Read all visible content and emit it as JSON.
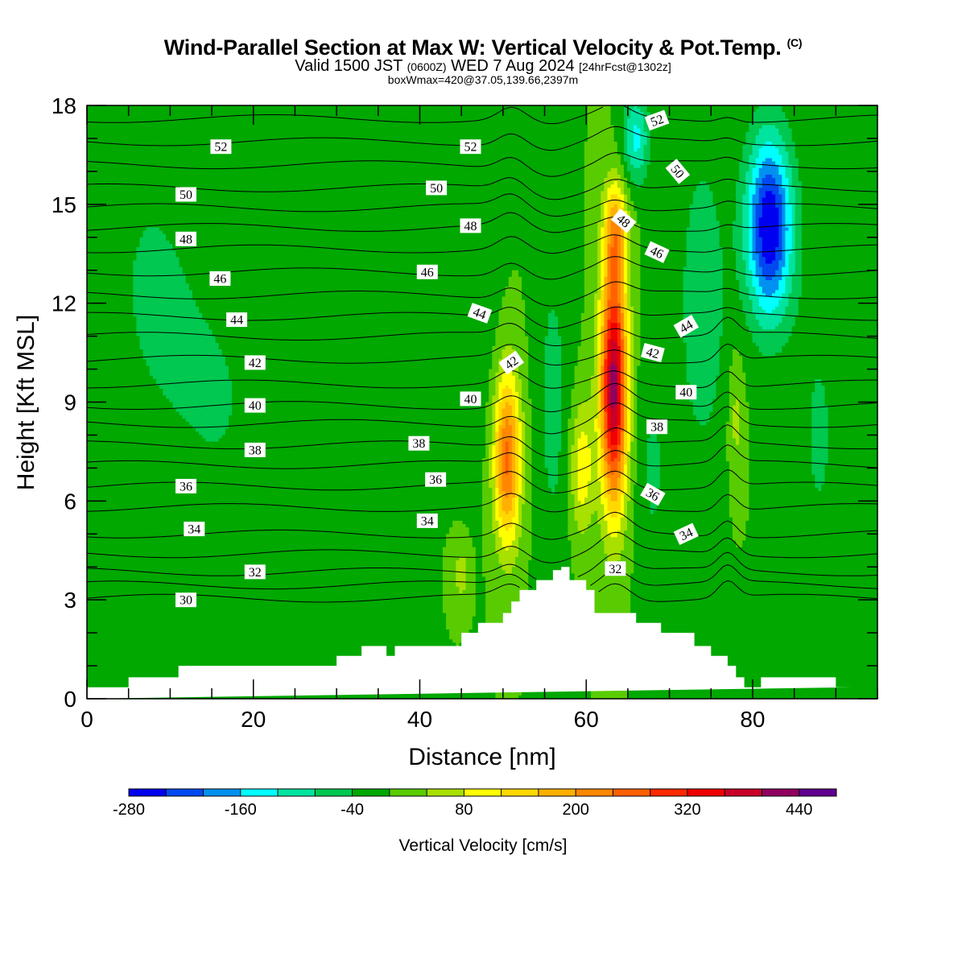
{
  "header": {
    "title": "Wind-Parallel Section at Max W: Vertical Velocity & Pot.Temp.",
    "copyright": "(C)",
    "valid_prefix": "Valid 1500 JST",
    "valid_utc": "(0600Z)",
    "valid_date": "WED 7 Aug 2024",
    "forecast": "[24hrFcst@1302z]",
    "subtitle": "boxWmax=420@37.05,139.66,2397m"
  },
  "chart_data": {
    "type": "heatmap",
    "xlabel": "Distance [nm]",
    "ylabel": "Height [Kft MSL]",
    "xlim": [
      0,
      95
    ],
    "ylim": [
      0,
      18
    ],
    "x_ticks": [
      "0",
      "20",
      "40",
      "60",
      "80"
    ],
    "x_tick_values": [
      0,
      20,
      40,
      60,
      80
    ],
    "y_ticks": [
      "0",
      "3",
      "6",
      "9",
      "12",
      "15",
      "18"
    ],
    "y_tick_values": [
      0,
      3,
      6,
      9,
      12,
      15,
      18
    ],
    "colorbar": {
      "label": "Vertical Velocity [cm/s]",
      "range": [
        -280,
        480
      ],
      "tick_labels": [
        "-280",
        "-160",
        "-40",
        "80",
        "200",
        "320",
        "440"
      ],
      "tick_values": [
        -280,
        -160,
        -40,
        80,
        200,
        320,
        440
      ],
      "bins": [
        {
          "lo": -280,
          "hi": -240,
          "color": "#0000f0"
        },
        {
          "lo": -240,
          "hi": -200,
          "color": "#0048f0"
        },
        {
          "lo": -200,
          "hi": -160,
          "color": "#0090f0"
        },
        {
          "lo": -160,
          "hi": -120,
          "color": "#00ffff"
        },
        {
          "lo": -120,
          "hi": -80,
          "color": "#00e4a0"
        },
        {
          "lo": -80,
          "hi": -40,
          "color": "#00c850"
        },
        {
          "lo": -40,
          "hi": 0,
          "color": "#00a800"
        },
        {
          "lo": 0,
          "hi": 40,
          "color": "#58cc00"
        },
        {
          "lo": 40,
          "hi": 80,
          "color": "#a8e000"
        },
        {
          "lo": 80,
          "hi": 120,
          "color": "#ffff00"
        },
        {
          "lo": 120,
          "hi": 160,
          "color": "#ffd800"
        },
        {
          "lo": 160,
          "hi": 200,
          "color": "#ffb000"
        },
        {
          "lo": 200,
          "hi": 240,
          "color": "#ff8800"
        },
        {
          "lo": 240,
          "hi": 280,
          "color": "#ff6000"
        },
        {
          "lo": 280,
          "hi": 320,
          "color": "#ff2800"
        },
        {
          "lo": 320,
          "hi": 360,
          "color": "#f00000"
        },
        {
          "lo": 360,
          "hi": 400,
          "color": "#c80028"
        },
        {
          "lo": 400,
          "hi": 440,
          "color": "#900060"
        },
        {
          "lo": 440,
          "hi": 480,
          "color": "#600090"
        }
      ]
    },
    "background_velocity": 0,
    "velocity_features": [
      {
        "x": 16,
        "y": 9.0,
        "sx": 9.0,
        "sy": 6.0,
        "value": -40,
        "name": "left-downdraft"
      },
      {
        "x": 7,
        "y": 13.0,
        "sx": 6.0,
        "sy": 5.0,
        "value": -35,
        "name": "far-left-downdraft"
      },
      {
        "x": 28,
        "y": 7.0,
        "sx": 3.0,
        "sy": 7.0,
        "value": -20,
        "name": "mid-left-downdraft"
      },
      {
        "x": 38,
        "y": 11.0,
        "sx": 2.5,
        "sy": 6.0,
        "value": -30,
        "name": "mid-downdraft"
      },
      {
        "x": 47,
        "y": 12.0,
        "sx": 2.5,
        "sy": 5.0,
        "value": -30,
        "name": "pre-updraft-downdraft"
      },
      {
        "x": 50.5,
        "y": 7.3,
        "sx": 1.6,
        "sy": 2.6,
        "value": 250,
        "name": "updraft-1"
      },
      {
        "x": 56,
        "y": 9.0,
        "sx": 2.0,
        "sy": 5.0,
        "value": -55,
        "name": "between-downdraft"
      },
      {
        "x": 59.5,
        "y": 7.0,
        "sx": 1.4,
        "sy": 2.0,
        "value": 110,
        "name": "updraft-2"
      },
      {
        "x": 63.3,
        "y": 9.5,
        "sx": 1.6,
        "sy": 3.6,
        "value": 420,
        "name": "updraft-main"
      },
      {
        "x": 63.5,
        "y": 14.2,
        "sx": 1.4,
        "sy": 1.5,
        "value": 160,
        "name": "updraft-main-top"
      },
      {
        "x": 66,
        "y": 17.0,
        "sx": 1.6,
        "sy": 1.4,
        "value": -130,
        "name": "overshoot-downdraft"
      },
      {
        "x": 68,
        "y": 7.0,
        "sx": 2.0,
        "sy": 4.0,
        "value": -45,
        "name": "right-of-updraft-downdraft"
      },
      {
        "x": 74,
        "y": 12.0,
        "sx": 3.0,
        "sy": 5.0,
        "value": -70,
        "name": "anvil-downdraft"
      },
      {
        "x": 82,
        "y": 14.3,
        "sx": 2.8,
        "sy": 2.8,
        "value": -280,
        "name": "anvil-core-downdraft"
      },
      {
        "x": 78,
        "y": 8.5,
        "sx": 0.9,
        "sy": 2.0,
        "value": 55,
        "name": "right-updraft"
      },
      {
        "x": 88,
        "y": 8.0,
        "sx": 3.0,
        "sy": 5.0,
        "value": -45,
        "name": "far-right-downdraft"
      },
      {
        "x": 45,
        "y": 3.8,
        "sx": 1.0,
        "sy": 0.9,
        "value": 60,
        "name": "low-level-updraft"
      }
    ],
    "terrain": {
      "x": [
        0,
        5,
        5,
        11,
        11,
        30,
        30,
        33,
        33,
        36,
        36,
        37,
        37,
        45,
        45,
        47,
        47,
        50,
        50,
        51,
        51,
        52,
        52,
        54,
        54,
        56,
        56,
        57,
        57,
        58,
        58,
        60,
        60,
        61,
        61,
        66,
        66,
        69,
        69,
        73,
        73,
        75,
        75,
        77,
        77,
        78,
        78,
        79,
        79,
        81,
        81,
        90,
        90,
        92,
        92,
        95
      ],
      "y": [
        0.35,
        0.35,
        0.65,
        0.65,
        1.0,
        1.0,
        1.3,
        1.3,
        1.6,
        1.6,
        1.3,
        1.3,
        1.6,
        1.6,
        2.0,
        2.0,
        2.3,
        2.3,
        2.6,
        2.6,
        2.95,
        2.95,
        3.3,
        3.3,
        3.6,
        3.6,
        3.9,
        3.9,
        4.0,
        4.0,
        3.6,
        3.6,
        3.3,
        3.3,
        2.6,
        2.6,
        2.3,
        2.3,
        2.0,
        2.0,
        1.6,
        1.6,
        1.3,
        1.3,
        1.0,
        1.0,
        0.65,
        0.65,
        0.35,
        0.35,
        0.65,
        0.65,
        0.35,
        0.35
      ]
    },
    "theta_contours": {
      "levels": [
        30,
        31,
        32,
        33,
        34,
        35,
        36,
        37,
        38,
        39,
        40,
        41,
        42,
        43,
        44,
        45,
        46,
        47,
        48,
        49,
        50,
        51,
        52,
        53
      ],
      "base_height": [
        3.05,
        3.45,
        3.85,
        4.4,
        5.0,
        5.8,
        6.45,
        7.1,
        7.7,
        8.35,
        8.9,
        9.55,
        10.3,
        11.0,
        11.6,
        12.25,
        12.95,
        13.65,
        14.3,
        14.9,
        15.5,
        16.2,
        16.9,
        17.6
      ],
      "labels": [
        {
          "text": "30",
          "x": 11.9,
          "y": 3.0,
          "angle": 0
        },
        {
          "text": "32",
          "x": 20.2,
          "y": 3.85,
          "angle": 0
        },
        {
          "text": "34",
          "x": 12.9,
          "y": 5.15,
          "angle": 0
        },
        {
          "text": "36",
          "x": 11.9,
          "y": 6.45,
          "angle": 0
        },
        {
          "text": "38",
          "x": 20.2,
          "y": 7.55,
          "angle": 0
        },
        {
          "text": "40",
          "x": 20.2,
          "y": 8.9,
          "angle": 0
        },
        {
          "text": "42",
          "x": 20.2,
          "y": 10.2,
          "angle": 0
        },
        {
          "text": "44",
          "x": 18.0,
          "y": 11.5,
          "angle": 0
        },
        {
          "text": "46",
          "x": 16.0,
          "y": 12.75,
          "angle": 0
        },
        {
          "text": "48",
          "x": 11.9,
          "y": 13.95,
          "angle": 0
        },
        {
          "text": "50",
          "x": 11.9,
          "y": 15.3,
          "angle": 0
        },
        {
          "text": "52",
          "x": 16.1,
          "y": 16.75,
          "angle": 0
        },
        {
          "text": "34",
          "x": 40.9,
          "y": 5.4,
          "angle": 0
        },
        {
          "text": "36",
          "x": 41.9,
          "y": 6.65,
          "angle": 0
        },
        {
          "text": "38",
          "x": 39.9,
          "y": 7.75,
          "angle": 0
        },
        {
          "text": "40",
          "x": 46.1,
          "y": 9.1,
          "angle": 0
        },
        {
          "text": "42",
          "x": 51.0,
          "y": 10.2,
          "angle": -35
        },
        {
          "text": "44",
          "x": 47.2,
          "y": 11.7,
          "angle": 20
        },
        {
          "text": "46",
          "x": 40.9,
          "y": 12.95,
          "angle": 0
        },
        {
          "text": "48",
          "x": 46.1,
          "y": 14.35,
          "angle": 0
        },
        {
          "text": "50",
          "x": 42.0,
          "y": 15.5,
          "angle": 0
        },
        {
          "text": "52",
          "x": 46.1,
          "y": 16.75,
          "angle": 0
        },
        {
          "text": "32",
          "x": 63.5,
          "y": 3.95,
          "angle": 0
        },
        {
          "text": "34",
          "x": 72.0,
          "y": 5.0,
          "angle": -25
        },
        {
          "text": "36",
          "x": 68.0,
          "y": 6.2,
          "angle": 30
        },
        {
          "text": "38",
          "x": 68.5,
          "y": 8.25,
          "angle": 0
        },
        {
          "text": "40",
          "x": 72.0,
          "y": 9.3,
          "angle": 0
        },
        {
          "text": "42",
          "x": 68.0,
          "y": 10.5,
          "angle": 15
        },
        {
          "text": "44",
          "x": 72.0,
          "y": 11.3,
          "angle": -30
        },
        {
          "text": "46",
          "x": 68.5,
          "y": 13.55,
          "angle": 25
        },
        {
          "text": "48",
          "x": 64.5,
          "y": 14.5,
          "angle": 40
        },
        {
          "text": "50",
          "x": 71.0,
          "y": 16.0,
          "angle": 50
        },
        {
          "text": "52",
          "x": 68.5,
          "y": 17.55,
          "angle": -20
        }
      ]
    }
  }
}
